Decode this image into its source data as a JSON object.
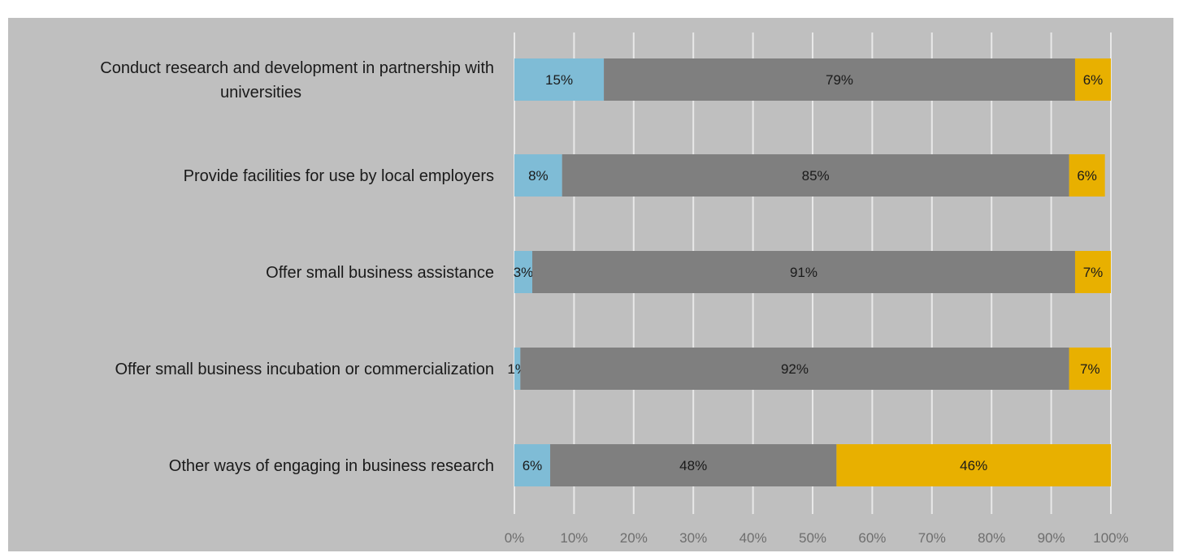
{
  "chart_data": {
    "type": "bar",
    "orientation": "horizontal",
    "stacked": true,
    "percent_stacked": true,
    "categories": [
      [
        "Conduct research and development in partnership with",
        "universities"
      ],
      [
        "Provide facilities for use by local employers"
      ],
      [
        "Offer small business assistance"
      ],
      [
        "Offer small business incubation or commercialization"
      ],
      [
        "Other ways of engaging in business research"
      ]
    ],
    "series": [
      {
        "values": [
          15,
          8,
          3,
          1,
          6
        ],
        "labels": [
          "15%",
          "8%",
          "3%",
          "1%",
          "6%"
        ],
        "color": "#7fbcd6"
      },
      {
        "values": [
          79,
          85,
          91,
          92,
          48
        ],
        "labels": [
          "79%",
          "85%",
          "91%",
          "92%",
          "48%"
        ],
        "color": "#7f7f7f"
      },
      {
        "values": [
          6,
          6,
          7,
          7,
          46
        ],
        "labels": [
          "6%",
          "6%",
          "7%",
          "7%",
          "46%"
        ],
        "color": "#e8b000"
      }
    ],
    "x_ticks": [
      "0%",
      "10%",
      "20%",
      "30%",
      "40%",
      "50%",
      "60%",
      "70%",
      "80%",
      "90%",
      "100%"
    ],
    "xlim": [
      0,
      100
    ],
    "grid": true,
    "legend": "none",
    "background_color": "#bfbfbf",
    "gridline_color": "#e8e8e8"
  }
}
